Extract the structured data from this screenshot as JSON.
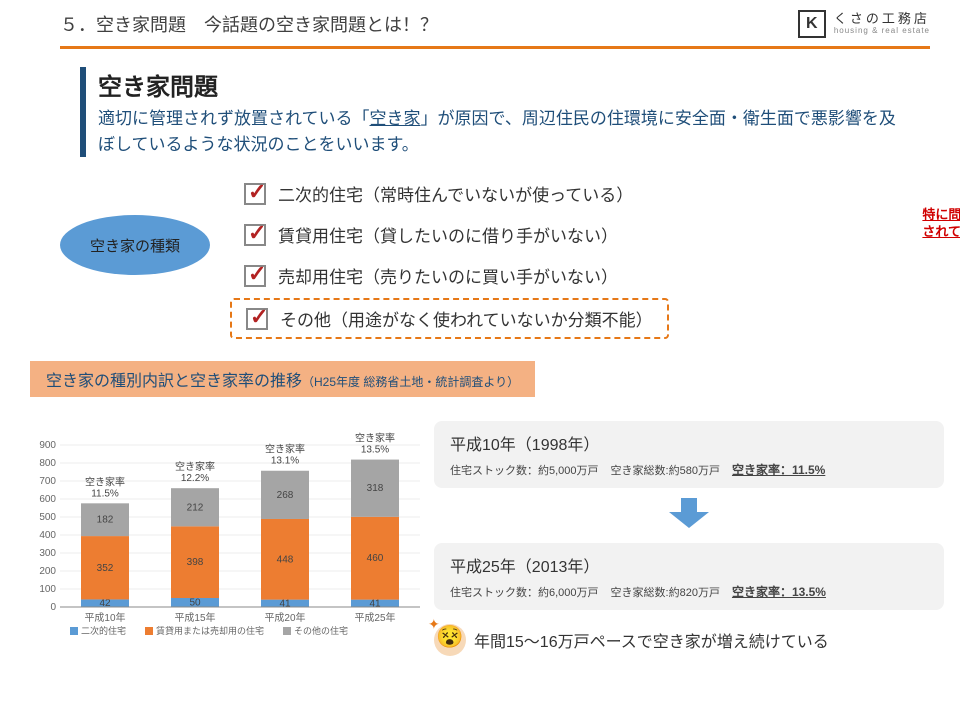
{
  "header": {
    "title": "５．空き家問題　今話題の空き家問題とは！？",
    "logo_mark": "K",
    "logo_main": "くさの工務店",
    "logo_sub": "housing & real estate"
  },
  "section": {
    "heading": "空き家問題",
    "body_pre": "適切に管理されず放置されている「",
    "body_link": "空き家",
    "body_post": "」が原因で、周辺住民の住環境に安全面・衛生面で悪影響を及ぼしているような状況のことをいいます。"
  },
  "types": {
    "ellipse_label": "空き家の種類",
    "items": [
      "二次的住宅（常時住んでいないが使っている）",
      "賃貸用住宅（貸したいのに借り手がいない）",
      "売却用住宅（売りたいのに買い手がいない）",
      "その他（用途がなく使われていないか分類不能）"
    ],
    "callout": "特に問題視\nされている！"
  },
  "banner": {
    "main": "空き家の種別内訳と空き家率の推移",
    "sub": "（H25年度 総務省土地・統計調査より）"
  },
  "chart": {
    "type": "stacked-bar",
    "ylim": [
      0,
      900
    ],
    "ytick_step": 100,
    "categories": [
      "平成10年",
      "平成15年",
      "平成20年",
      "平成25年"
    ],
    "top_labels": [
      "空き家率\n11.5%",
      "空き家率\n12.2%",
      "空き家率\n13.1%",
      "空き家率\n13.5%"
    ],
    "series": [
      {
        "name": "二次的住宅",
        "color": "#5b9bd5",
        "values": [
          42,
          50,
          41,
          41
        ]
      },
      {
        "name": "賃貸用または売却用の住宅",
        "color": "#ed7d31",
        "values": [
          352,
          398,
          448,
          460
        ]
      },
      {
        "name": "その他の住宅",
        "color": "#a5a5a5",
        "values": [
          182,
          212,
          268,
          318
        ]
      }
    ],
    "bar_labels": [
      [
        42,
        352,
        182
      ],
      [
        50,
        398,
        212
      ],
      [
        41,
        448,
        268
      ],
      [
        41,
        460,
        318
      ]
    ],
    "background": "#ffffff",
    "grid_color": "#d9d9d9"
  },
  "year_boxes": [
    {
      "title": "平成10年（1998年）",
      "stock": "住宅ストック数：約5,000万戸",
      "total": "空き家総数:約580万戸",
      "rate": "空き家率：11.5%"
    },
    {
      "title": "平成25年（2013年）",
      "stock": "住宅ストック数：約6,000万戸",
      "total": "空き家総数:約820万戸",
      "rate": "空き家率：13.5%"
    }
  ],
  "final_note": "年間15～16万戸ペースで空き家が増え続けている",
  "colors": {
    "accent_orange": "#e67817",
    "accent_blue": "#1f4e79",
    "ellipse_blue": "#5b9bd5",
    "banner_bg": "#f4b183",
    "box_bg": "#f2f2f2"
  }
}
